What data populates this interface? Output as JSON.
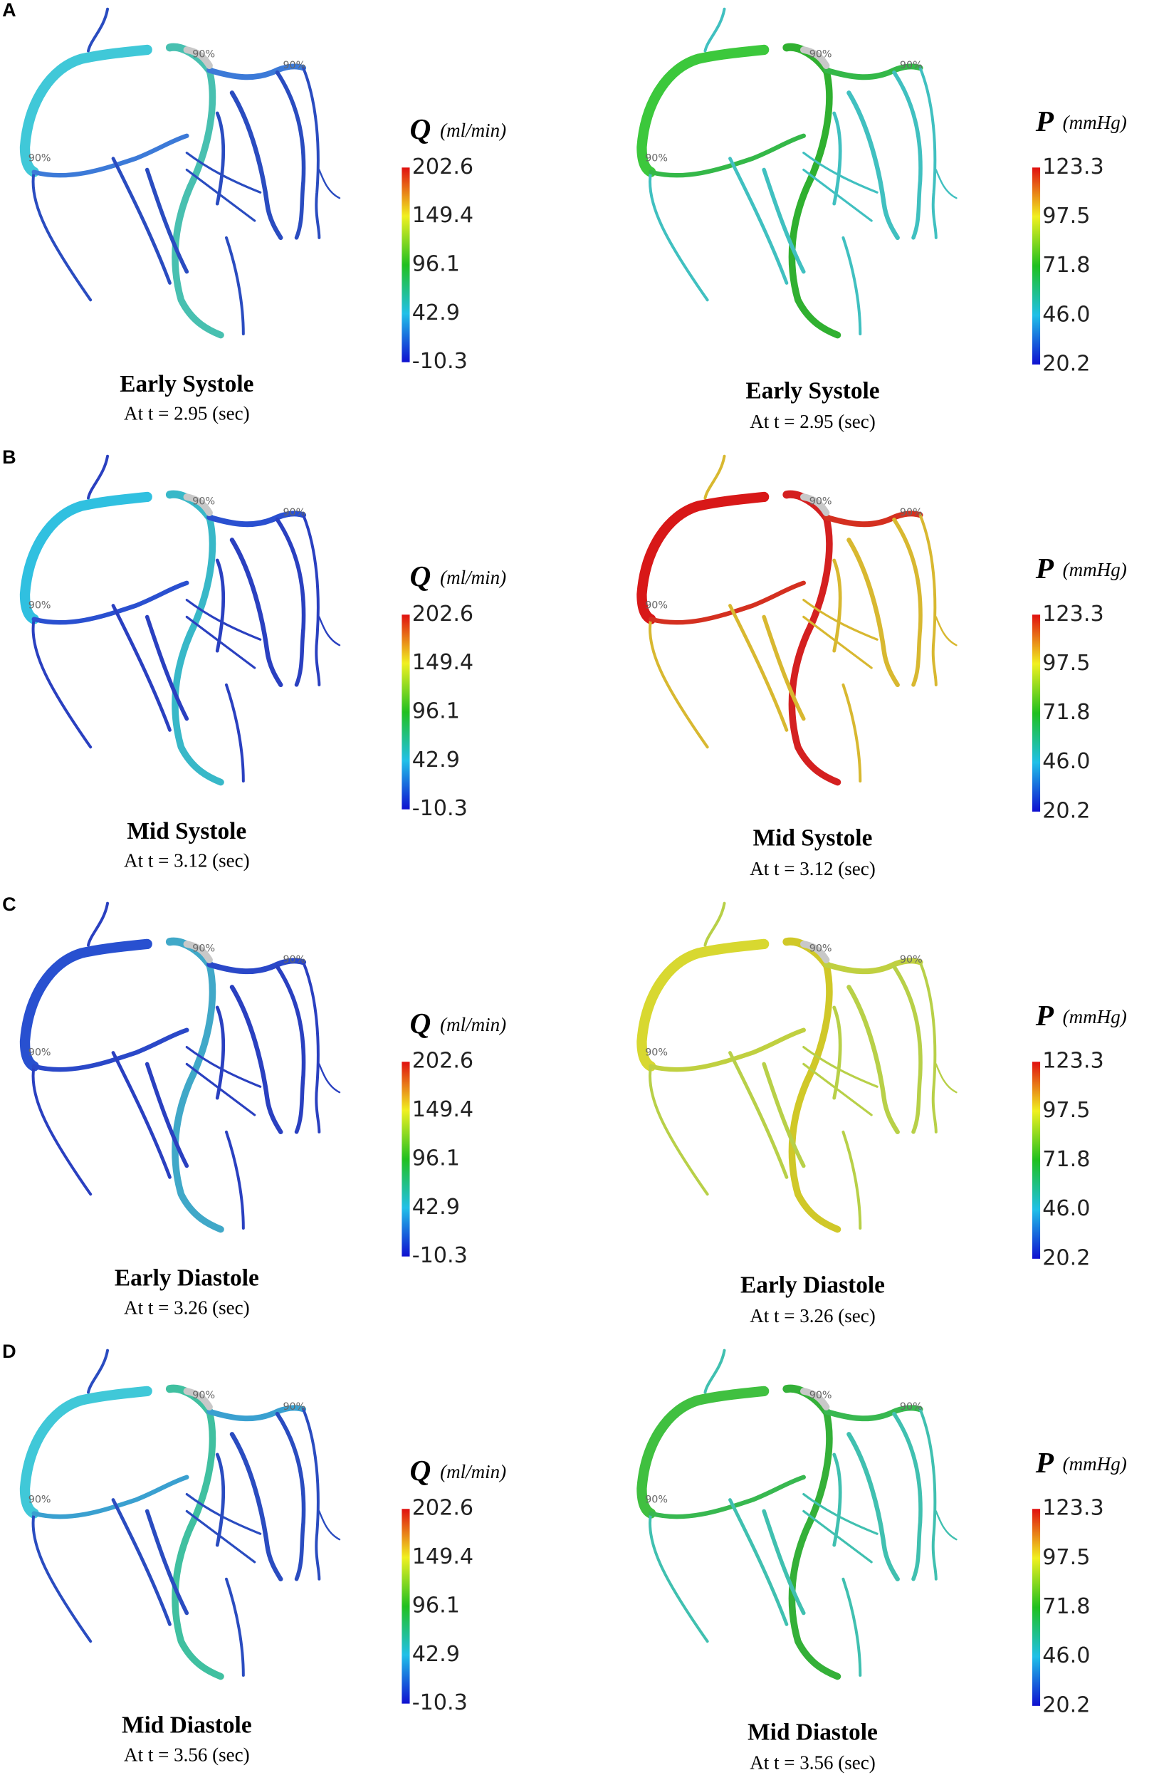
{
  "rows": [
    {
      "label": "A",
      "panels": [
        {
          "quantity": "Q",
          "unit": "(ml/min)",
          "ticks": [
            "202.6",
            "149.4",
            "96.1",
            "42.9",
            "-10.3"
          ],
          "stenosis_labels": [
            "90%",
            "90%",
            "90%"
          ],
          "phase": "Early Systole",
          "time": "At t = 2.95 (sec)",
          "colors": [
            "#40c8d8",
            "#48c0b0",
            "#3c7ad8",
            "#2a4cc0"
          ]
        },
        {
          "quantity": "P",
          "unit": "(mmHg)",
          "ticks": [
            "123.3",
            "97.5",
            "71.8",
            "46.0",
            "20.2"
          ],
          "stenosis_labels": [
            "90%",
            "90%",
            "90%"
          ],
          "phase": "Early Systole",
          "time": "At t = 2.95 (sec)",
          "colors": [
            "#3cc83c",
            "#30b030",
            "#34b848",
            "#40c0c0"
          ]
        }
      ]
    },
    {
      "label": "B",
      "panels": [
        {
          "quantity": "Q",
          "unit": "(ml/min)",
          "ticks": [
            "202.6",
            "149.4",
            "96.1",
            "42.9",
            "-10.3"
          ],
          "stenosis_labels": [
            "90%",
            "90%",
            "90%"
          ],
          "phase": "Mid Systole",
          "time": "At t = 3.12 (sec)",
          "colors": [
            "#30c0e0",
            "#38b8c8",
            "#2a50d0",
            "#2a40c0"
          ]
        },
        {
          "quantity": "P",
          "unit": "(mmHg)",
          "ticks": [
            "123.3",
            "97.5",
            "71.8",
            "46.0",
            "20.2"
          ],
          "stenosis_labels": [
            "90%",
            "90%",
            "90%"
          ],
          "phase": "Mid Systole",
          "time": "At t = 3.12 (sec)",
          "colors": [
            "#d81818",
            "#d42020",
            "#d43020",
            "#d8b830"
          ]
        }
      ]
    },
    {
      "label": "C",
      "panels": [
        {
          "quantity": "Q",
          "unit": "(ml/min)",
          "ticks": [
            "202.6",
            "149.4",
            "96.1",
            "42.9",
            "-10.3"
          ],
          "stenosis_labels": [
            "90%",
            "90%",
            "90%"
          ],
          "phase": "Early Diastole",
          "time": "At t = 3.26 (sec)",
          "colors": [
            "#2850d0",
            "#40a8c8",
            "#2a48c8",
            "#2a40c0"
          ]
        },
        {
          "quantity": "P",
          "unit": "(mmHg)",
          "ticks": [
            "123.3",
            "97.5",
            "71.8",
            "46.0",
            "20.2"
          ],
          "stenosis_labels": [
            "90%",
            "90%",
            "90%"
          ],
          "phase": "Early Diastole",
          "time": "At t = 3.26 (sec)",
          "colors": [
            "#d8d830",
            "#d0c828",
            "#c0d040",
            "#b8d048"
          ]
        }
      ]
    },
    {
      "label": "D",
      "panels": [
        {
          "quantity": "Q",
          "unit": "(ml/min)",
          "ticks": [
            "202.6",
            "149.4",
            "96.1",
            "42.9",
            "-10.3"
          ],
          "stenosis_labels": [
            "90%",
            "90%",
            "90%"
          ],
          "phase": "Mid Diastole",
          "time": "At t = 3.56 (sec)",
          "colors": [
            "#40c8d8",
            "#40c0a0",
            "#3aa0d0",
            "#2a4cc0"
          ]
        },
        {
          "quantity": "P",
          "unit": "(mmHg)",
          "ticks": [
            "123.3",
            "97.5",
            "71.8",
            "46.0",
            "20.2"
          ],
          "stenosis_labels": [
            "90%",
            "90%",
            "90%"
          ],
          "phase": "Mid Diastole",
          "time": "At t = 3.56 (sec)",
          "colors": [
            "#40c040",
            "#34b038",
            "#38b850",
            "#40c0b0"
          ]
        }
      ]
    }
  ]
}
